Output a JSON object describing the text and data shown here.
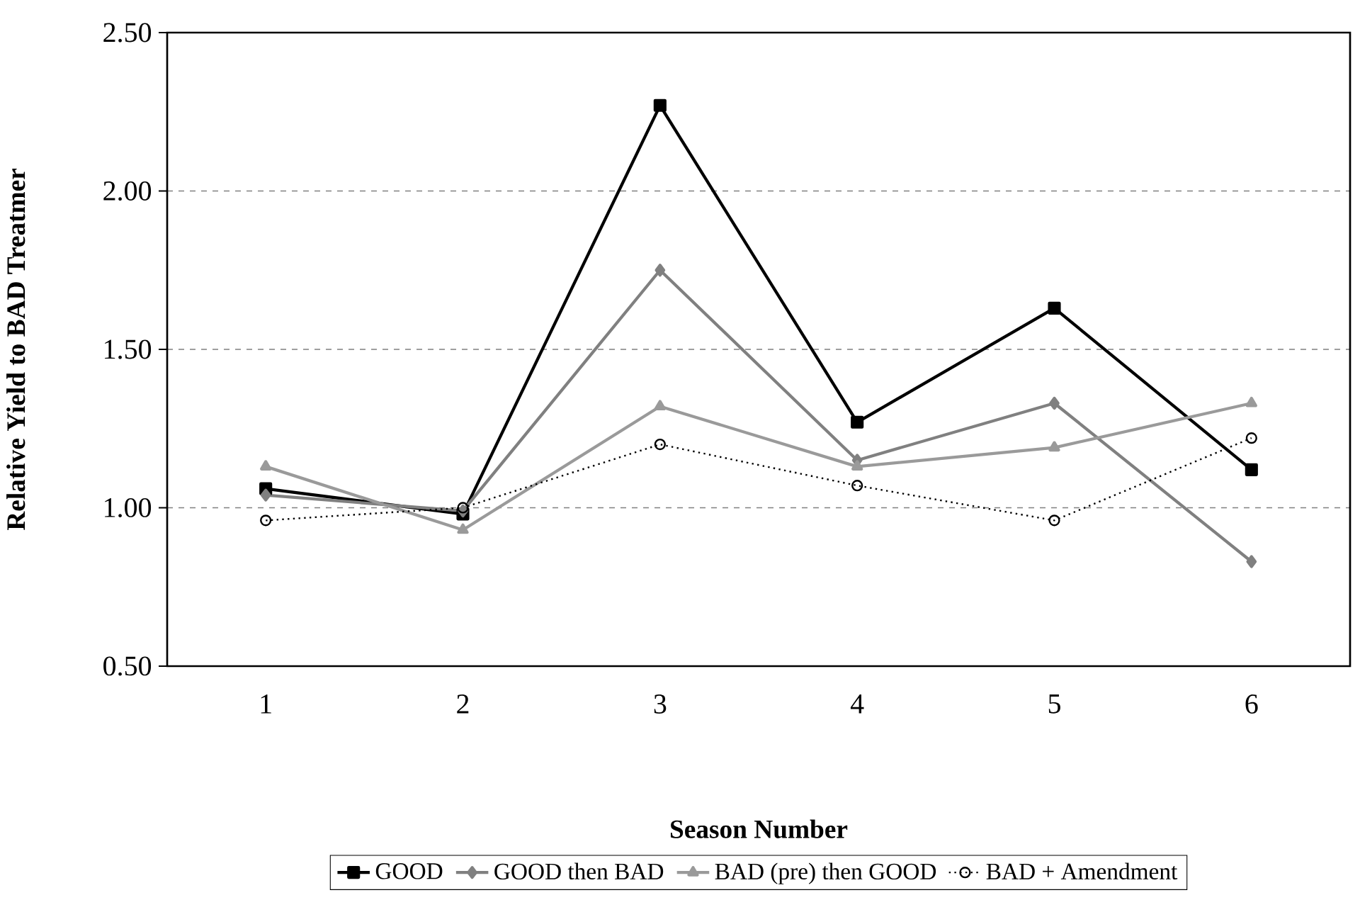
{
  "chart_data": {
    "type": "line",
    "xlabel": "Season Number",
    "ylabel": "Relative Yield to BAD Treatmer",
    "categories": [
      "1",
      "2",
      "3",
      "4",
      "5",
      "6"
    ],
    "series": [
      {
        "name": "GOOD",
        "color": "#000000",
        "marker": "square",
        "line_style": "solid",
        "values": [
          1.06,
          0.98,
          2.27,
          1.27,
          1.63,
          1.12
        ]
      },
      {
        "name": "GOOD then BAD",
        "color": "#808080",
        "marker": "diamond",
        "line_style": "solid",
        "values": [
          1.04,
          0.99,
          1.75,
          1.15,
          1.33,
          0.83
        ]
      },
      {
        "name": "BAD (pre) then GOOD",
        "color": "#9a9a9a",
        "marker": "triangle",
        "line_style": "solid",
        "values": [
          1.13,
          0.93,
          1.32,
          1.13,
          1.19,
          1.33
        ]
      },
      {
        "name": "BAD + Amendment",
        "color": "#000000",
        "marker": "circle",
        "line_style": "dotted",
        "values": [
          0.96,
          1.0,
          1.2,
          1.07,
          0.96,
          1.22
        ]
      }
    ],
    "ylim": [
      0.5,
      2.5
    ],
    "yticks": [
      {
        "value": 0.5,
        "label": "0.50"
      },
      {
        "value": 1.0,
        "label": "1.00"
      },
      {
        "value": 1.5,
        "label": "1.50"
      },
      {
        "value": 2.0,
        "label": "2.00"
      },
      {
        "value": 2.5,
        "label": "2.50"
      }
    ],
    "grid": "y",
    "legend": "bottom"
  }
}
